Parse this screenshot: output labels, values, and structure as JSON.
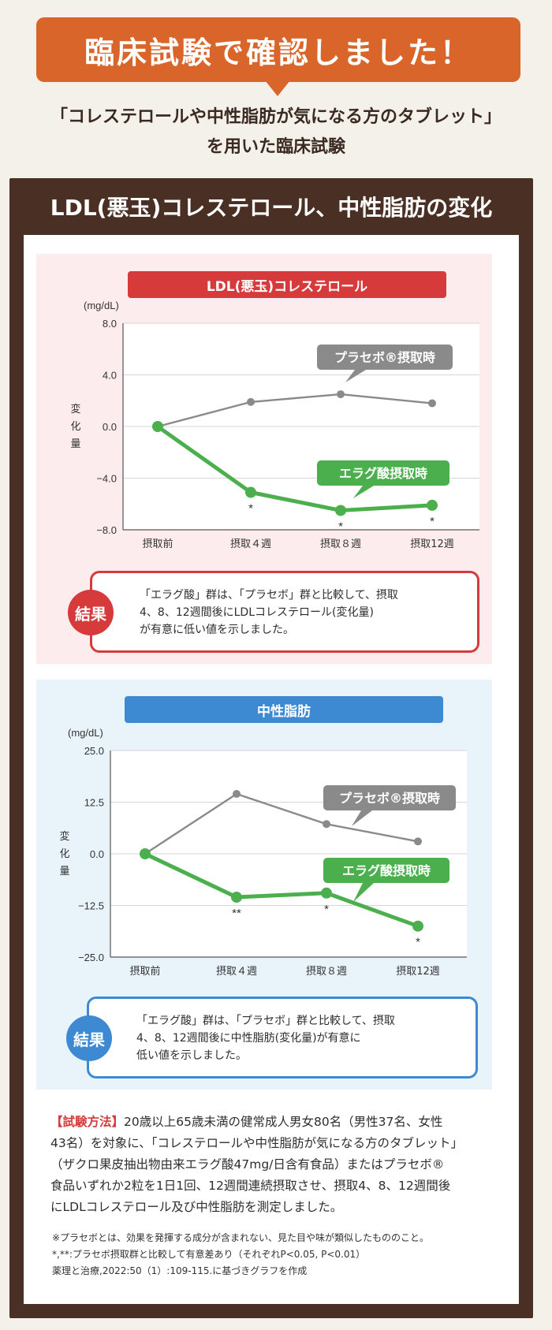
{
  "header": {
    "banner": "臨床試験で確認しました！",
    "subtitle_line1": "「コレステロールや中性脂肪が気になる方のタブレット」",
    "subtitle_line2": "を用いた臨床試験"
  },
  "section": {
    "title": "LDL(悪玉)コレステロール、中性脂肪の変化"
  },
  "colors": {
    "placebo": "#8a8a8a",
    "ellagic": "#4caf4e",
    "red": "#d63a3a",
    "blue": "#3e8ad2",
    "orange": "#d9652a"
  },
  "chart_data": [
    {
      "type": "line",
      "title": "LDL(悪玉)コレステロール",
      "unit": "(mg/dL)",
      "ylabel": "変化量",
      "categories": [
        "摂取前",
        "摂取４週",
        "摂取８週",
        "摂取12週"
      ],
      "yticks": [
        "8.0",
        "4.0",
        "0.0",
        "−4.0",
        "−8.0"
      ],
      "ylim": [
        -8,
        8
      ],
      "grid": true,
      "series": [
        {
          "name": "プラセボ®摂取時",
          "values": [
            0,
            1.9,
            2.5,
            1.8
          ],
          "marks": [
            "",
            "",
            "",
            ""
          ]
        },
        {
          "name": "エラグ酸摂取時",
          "values": [
            0,
            -5.1,
            -6.5,
            -6.1
          ],
          "marks": [
            "",
            "*",
            "*",
            "*"
          ]
        }
      ]
    },
    {
      "type": "line",
      "title": "中性脂肪",
      "unit": "(mg/dL)",
      "ylabel": "変化量",
      "categories": [
        "摂取前",
        "摂取４週",
        "摂取８週",
        "摂取12週"
      ],
      "yticks": [
        "25.0",
        "12.5",
        "0.0",
        "−12.5",
        "−25.0"
      ],
      "ylim": [
        -25,
        25
      ],
      "grid": true,
      "series": [
        {
          "name": "プラセボ®摂取時",
          "values": [
            0,
            14.5,
            7.2,
            3.0
          ],
          "marks": [
            "",
            "",
            "",
            ""
          ]
        },
        {
          "name": "エラグ酸摂取時",
          "values": [
            0,
            -10.5,
            -9.5,
            -17.5
          ],
          "marks": [
            "",
            "**",
            "*",
            "*"
          ]
        }
      ]
    }
  ],
  "results": {
    "badge": "結果",
    "ldl_line1": "「エラグ酸」群は、「プラセボ」群と比較して、摂取",
    "ldl_line2": "4、8、12週間後にLDLコレステロール(変化量)",
    "ldl_line3": "が有意に低い値を示しました。",
    "tg_line1": "「エラグ酸」群は、「プラセボ」群と比較して、摂取",
    "tg_line2": "4、8、12週間後に中性脂肪(変化量)が有意に",
    "tg_line3": "低い値を示しました。"
  },
  "method": {
    "tag": "【試験方法】",
    "line1": "20歳以上65歳未満の健常成人男女80名（男性37名、女性",
    "line2": "43名）を対象に、「コレステロールや中性脂肪が気になる方のタブレット」",
    "line3": "（ザクロ果皮抽出物由来エラグ酸47mg/日含有食品）またはプラセボ®",
    "line4": "食品いずれか2粒を1日1回、12週間連続摂取させ、摂取4、8、12週間後",
    "line5": "にLDLコレステロール及び中性脂肪を測定しました。"
  },
  "notes": {
    "line1": "※プラセボとは、効果を発揮する成分が含まれない、見た目や味が類似したもののこと。",
    "line2": "*,**:プラセボ摂取群と比較して有意差あり（それぞれP<0.05, P<0.01）",
    "line3": "薬理と治療,2022:50（1）:109-115.に基づきグラフを作成"
  }
}
